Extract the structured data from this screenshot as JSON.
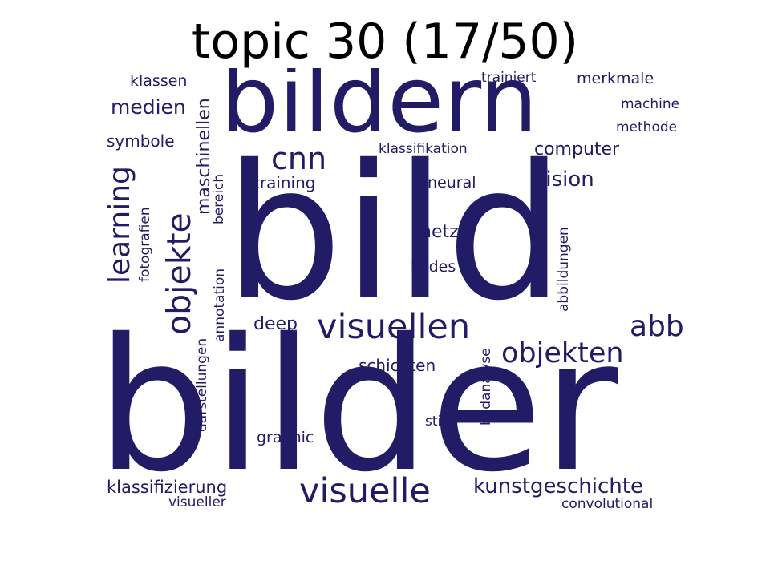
{
  "title": "topic 30 (17/50)",
  "word_color": "#211c65",
  "words": [
    {
      "text": "bilder"
    },
    {
      "text": "bild"
    },
    {
      "text": "bildern"
    },
    {
      "text": "visuellen"
    },
    {
      "text": "visuelle"
    },
    {
      "text": "objekte"
    },
    {
      "text": "learning"
    },
    {
      "text": "objekten"
    },
    {
      "text": "cnn"
    },
    {
      "text": "abb"
    },
    {
      "text": "kunstgeschichte"
    },
    {
      "text": "medien"
    },
    {
      "text": "vision"
    },
    {
      "text": "maschinellen"
    },
    {
      "text": "computer"
    },
    {
      "text": "klassifizierung"
    },
    {
      "text": "deep"
    },
    {
      "text": "netze"
    },
    {
      "text": "schichten"
    },
    {
      "text": "symbole"
    },
    {
      "text": "training"
    },
    {
      "text": "klassen"
    },
    {
      "text": "merkmale"
    },
    {
      "text": "trainiert"
    },
    {
      "text": "bildes"
    },
    {
      "text": "neural"
    },
    {
      "text": "graphic"
    },
    {
      "text": "klassifikation"
    },
    {
      "text": "machine"
    },
    {
      "text": "methode"
    },
    {
      "text": "visueller"
    },
    {
      "text": "convolutional"
    },
    {
      "text": "stil"
    },
    {
      "text": "bereich"
    },
    {
      "text": "fotografien"
    },
    {
      "text": "annotation"
    },
    {
      "text": "darstellungen"
    },
    {
      "text": "bildanalyse"
    },
    {
      "text": "abbildungen"
    }
  ]
}
